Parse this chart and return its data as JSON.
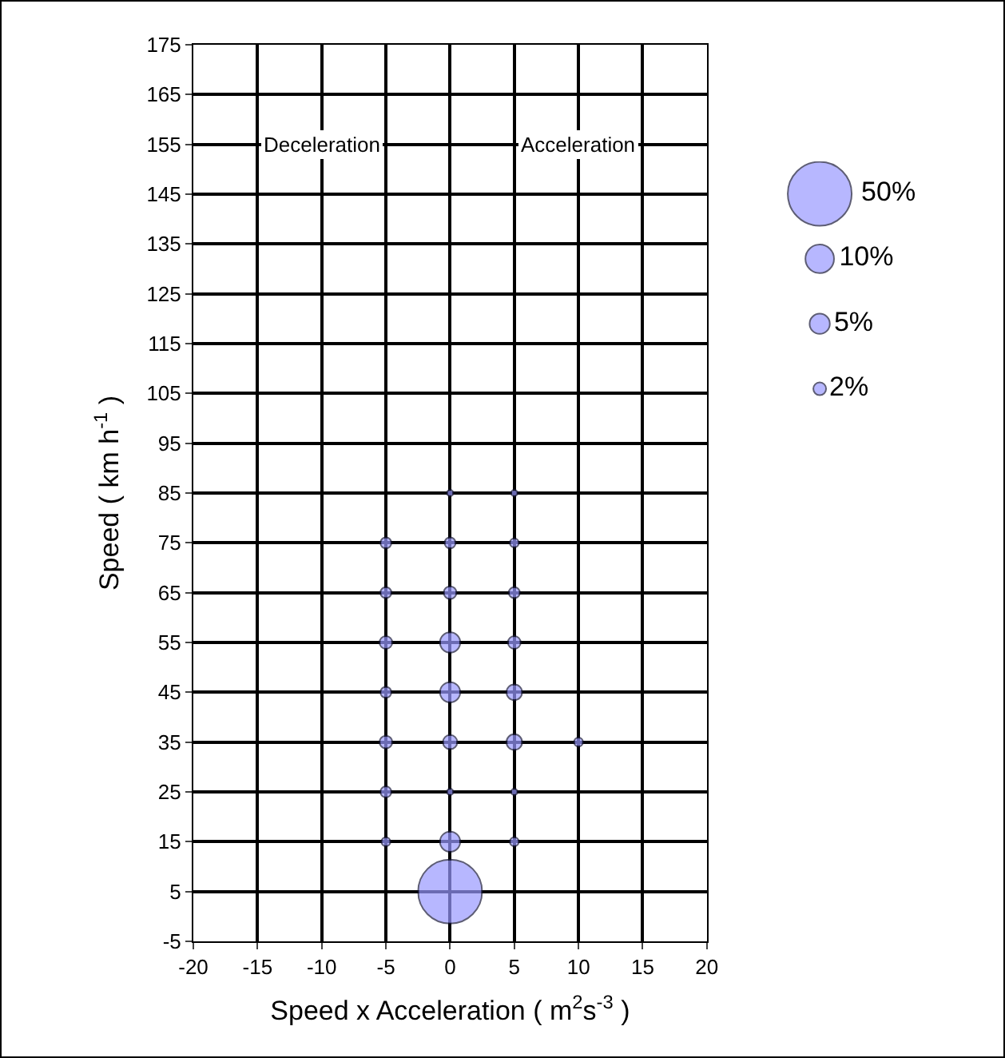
{
  "chart_data": {
    "type": "bubble",
    "xlabel": "Speed x Acceleration ( m$^{2}$s$^{-3}$ )",
    "ylabel": "Speed ( km h$^{-1}$ )",
    "annotations": [
      "Deceleration",
      "Acceleration"
    ],
    "x": [
      0,
      0,
      0,
      0,
      5,
      5,
      0,
      -5,
      -5,
      5,
      -5,
      0,
      0,
      5,
      -5,
      -5,
      5,
      -5,
      -5,
      5,
      10,
      0,
      5,
      0,
      5
    ],
    "values": [
      5,
      15,
      55,
      45,
      45,
      35,
      35,
      35,
      55,
      55,
      45,
      65,
      75,
      65,
      65,
      75,
      75,
      25,
      15,
      15,
      35,
      25,
      25,
      85,
      85
    ],
    "sizes": [
      50,
      5,
      5,
      5,
      3,
      3,
      2.5,
      2,
      2,
      2,
      1.5,
      2,
      1.5,
      1.5,
      1.5,
      1.5,
      1,
      1.5,
      1,
      1,
      1,
      0.5,
      0.5,
      0.2,
      0.2
    ],
    "color": "#9999ff",
    "size_legend": [
      {
        "value": 50,
        "label": "50%"
      },
      {
        "value": 10,
        "label": "10%"
      },
      {
        "value": 5,
        "label": "5%"
      },
      {
        "value": 2,
        "label": "2%"
      }
    ],
    "xlim": [
      -20,
      20
    ],
    "xticks": [
      -20,
      -15,
      -10,
      -5,
      0,
      5,
      10,
      15,
      20
    ],
    "ylim": [
      -5,
      175
    ],
    "yticks": [
      -5,
      5,
      15,
      25,
      35,
      45,
      55,
      65,
      75,
      85,
      95,
      105,
      115,
      125,
      135,
      145,
      155,
      165,
      175
    ],
    "grid": true
  }
}
